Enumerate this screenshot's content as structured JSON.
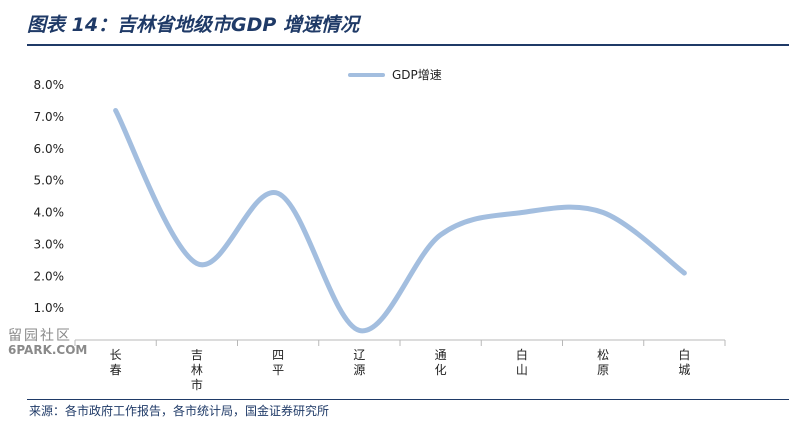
{
  "title": "图表 14：吉林省地级市GDP 增速情况",
  "source": "来源：各市政府工作报告，各市统计局，国金证券研究所",
  "watermark": {
    "line1": "留园社区",
    "line2": "6PARK.COM"
  },
  "colors": {
    "line": "#a3bedf",
    "title": "#1f3a67",
    "axis": "#b8b8b8"
  },
  "chart_data": {
    "type": "line",
    "categories": [
      "长春",
      "吉林市",
      "四平",
      "辽源",
      "通化",
      "白山",
      "松原",
      "白城"
    ],
    "series": [
      {
        "name": "GDP增速",
        "values": [
          7.2,
          2.4,
          4.6,
          0.3,
          3.3,
          4.0,
          4.0,
          2.1
        ]
      }
    ],
    "yticks": [
      "1.0%",
      "2.0%",
      "3.0%",
      "4.0%",
      "5.0%",
      "6.0%",
      "7.0%",
      "8.0%"
    ],
    "ylim": [
      0,
      8
    ],
    "legend_position": "top-center",
    "smooth": true,
    "grid": false
  }
}
